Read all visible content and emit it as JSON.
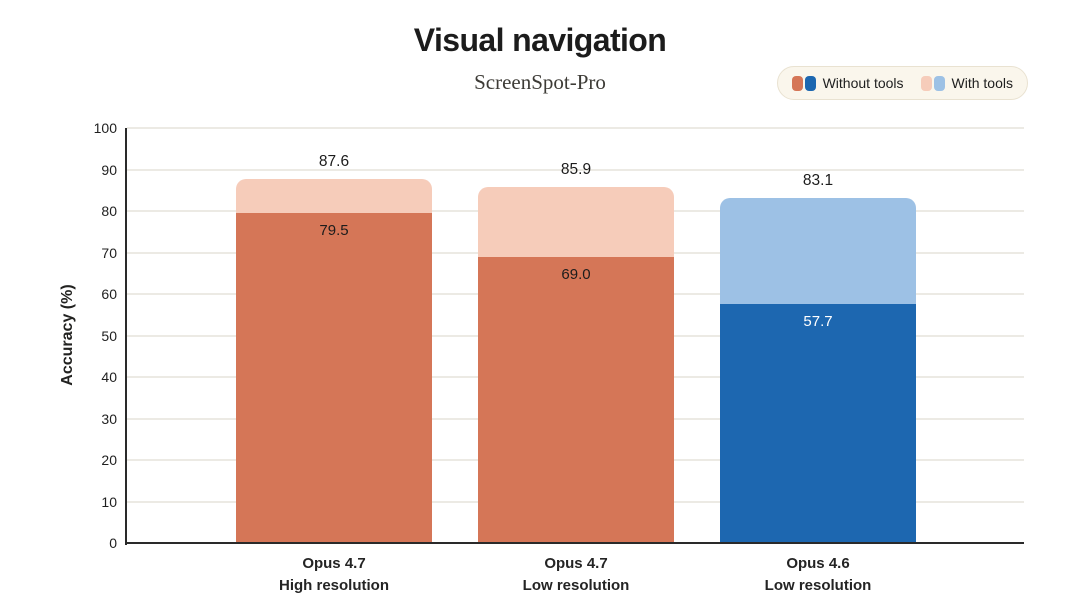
{
  "title": "Visual navigation",
  "subtitle": "ScreenSpot-Pro",
  "legend": {
    "items": [
      {
        "label": "Without tools",
        "swatches": [
          "#d57657",
          "#1d67b0"
        ]
      },
      {
        "label": "With tools",
        "swatches": [
          "#f6ccba",
          "#9dc1e5"
        ]
      }
    ]
  },
  "colors": {
    "orange_dark": "#d57657",
    "orange_light": "#f6ccba",
    "blue_dark": "#1d67b0",
    "blue_light": "#9dc1e5",
    "gridline": "#eceae4",
    "axis": "#2a2a2a",
    "label_dark": "#1c1c1c",
    "label_on_dark": "#ffffff",
    "legend_bg": "#faf6ec",
    "legend_border": "#e9e2d1"
  },
  "chart_data": {
    "type": "bar",
    "stacked": true,
    "title": "Visual navigation",
    "subtitle": "ScreenSpot-Pro",
    "categories": [
      "Opus 4.7\nHigh resolution",
      "Opus 4.7\nLow resolution",
      "Opus 4.6\nLow resolution"
    ],
    "series": [
      {
        "name": "Without tools",
        "values": [
          79.5,
          69.0,
          57.7
        ]
      },
      {
        "name": "With tools",
        "values": [
          87.6,
          85.9,
          83.1
        ]
      }
    ],
    "xlabel": "",
    "ylabel": "Accuracy (%)",
    "ylim": [
      0,
      100
    ],
    "yticks": [
      0,
      10,
      20,
      30,
      40,
      50,
      60,
      70,
      80,
      90,
      100
    ],
    "grid": true,
    "legend_position": "top-right"
  },
  "bars": [
    {
      "category_line1": "Opus 4.7",
      "category_line2": "High resolution",
      "without_tools": 79.5,
      "with_tools": 87.6,
      "without_label": "79.5",
      "total_label": "87.6",
      "palette": "orange",
      "inner_label_color": "dark"
    },
    {
      "category_line1": "Opus 4.7",
      "category_line2": "Low resolution",
      "without_tools": 69.0,
      "with_tools": 85.9,
      "without_label": "69.0",
      "total_label": "85.9",
      "palette": "orange",
      "inner_label_color": "dark"
    },
    {
      "category_line1": "Opus 4.6",
      "category_line2": "Low resolution",
      "without_tools": 57.7,
      "with_tools": 83.1,
      "without_label": "57.7",
      "total_label": "83.1",
      "palette": "blue",
      "inner_label_color": "light"
    }
  ],
  "ylabel": "Accuracy (%)"
}
